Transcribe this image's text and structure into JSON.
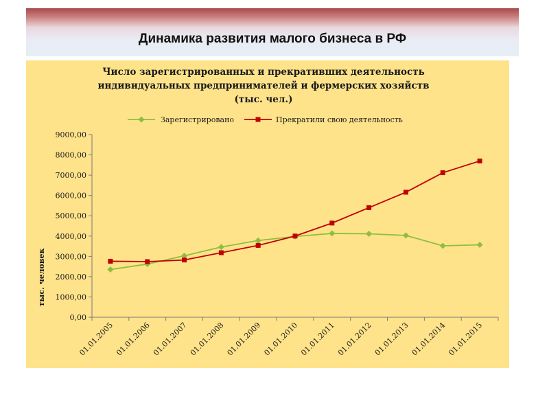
{
  "slide": {
    "title": "Динамика развития малого бизнеса в РФ"
  },
  "chart_data": {
    "type": "line",
    "title_lines": [
      "Число зарегистрированных  и прекративших деятельность",
      "индивидуальных предпринимателей и фермерских хозяйств",
      "(тыс. чел.)"
    ],
    "xlabel": "",
    "ylabel": "тыс. человек",
    "ylim": [
      0,
      9000
    ],
    "y_ticks": [
      "0,00",
      "1000,00",
      "2000,00",
      "3000,00",
      "4000,00",
      "5000,00",
      "6000,00",
      "7000,00",
      "8000,00",
      "9000,00"
    ],
    "grid": false,
    "legend_position": "top",
    "categories": [
      "01.01.2005",
      "01.01.2006",
      "01.01.2007",
      "01.01.2008",
      "01.01.2009",
      "01.01.2010",
      "01.01.2011",
      "01.01.2012",
      "01.01.2013",
      "01.01.2014",
      "01.01.2015"
    ],
    "series": [
      {
        "name": "Зарегистрировано",
        "color": "#8dbf3f",
        "marker": "diamond",
        "values": [
          2350,
          2620,
          3030,
          3460,
          3780,
          3980,
          4130,
          4110,
          4030,
          3520,
          3570
        ]
      },
      {
        "name": "Прекратили свою деятельность",
        "color": "#c00000",
        "marker": "square",
        "values": [
          2760,
          2740,
          2820,
          3180,
          3540,
          4000,
          4640,
          5400,
          6160,
          7120,
          7700
        ]
      }
    ]
  }
}
